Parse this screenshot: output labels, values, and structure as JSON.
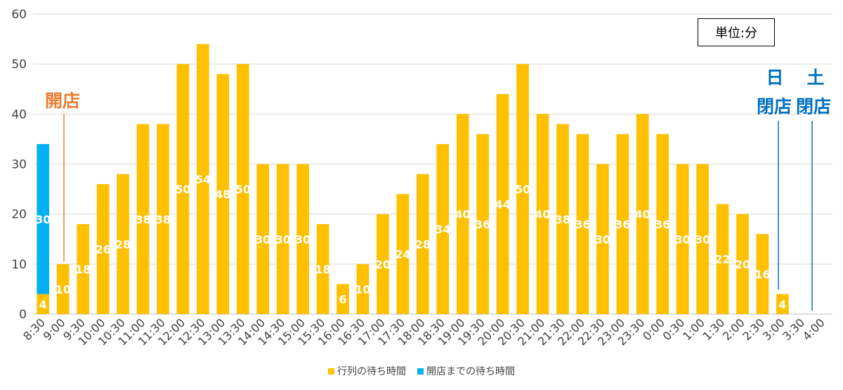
{
  "unit_label": "単位:分",
  "colors": {
    "queue": "#FFC000",
    "preopen": "#00B0F0",
    "open_marker": "#ED7D31",
    "close_marker": "#0070C0",
    "grid": "#D9D9D9"
  },
  "annotations": {
    "open": "開店",
    "sunday_day": "日",
    "saturday_day": "土",
    "sunday_close": "閉店",
    "saturday_close": "閉店"
  },
  "chart_data": {
    "type": "bar",
    "stacked": true,
    "categories": [
      "8:30",
      "9:00",
      "9:30",
      "10:00",
      "10:30",
      "11:00",
      "11:30",
      "12:00",
      "12:30",
      "13:00",
      "13:30",
      "14:00",
      "14:30",
      "15:00",
      "15:30",
      "16:00",
      "16:30",
      "17:00",
      "17:30",
      "18:00",
      "18:30",
      "19:00",
      "19:30",
      "20:00",
      "20:30",
      "21:00",
      "21:30",
      "22:00",
      "22:30",
      "23:00",
      "23:30",
      "0:00",
      "0:30",
      "1:00",
      "1:30",
      "2:00",
      "2:30",
      "3:00",
      "3:30",
      "4:00"
    ],
    "series": [
      {
        "name": "行列の待ち時間",
        "color": "#FFC000",
        "values": [
          4,
          10,
          18,
          26,
          28,
          38,
          38,
          50,
          54,
          48,
          50,
          30,
          30,
          30,
          18,
          6,
          10,
          20,
          24,
          28,
          34,
          40,
          36,
          44,
          50,
          40,
          38,
          36,
          30,
          36,
          40,
          36,
          30,
          30,
          22,
          20,
          16,
          4,
          0,
          0
        ]
      },
      {
        "name": "開店までの待ち時間",
        "color": "#00B0F0",
        "values": [
          30,
          0,
          0,
          0,
          0,
          0,
          0,
          0,
          0,
          0,
          0,
          0,
          0,
          0,
          0,
          0,
          0,
          0,
          0,
          0,
          0,
          0,
          0,
          0,
          0,
          0,
          0,
          0,
          0,
          0,
          0,
          0,
          0,
          0,
          0,
          0,
          0,
          0,
          0,
          0
        ]
      }
    ],
    "ylim": [
      0,
      60
    ],
    "yticks": [
      0,
      10,
      20,
      30,
      40,
      50,
      60
    ],
    "grid": true,
    "legend_position": "bottom"
  }
}
